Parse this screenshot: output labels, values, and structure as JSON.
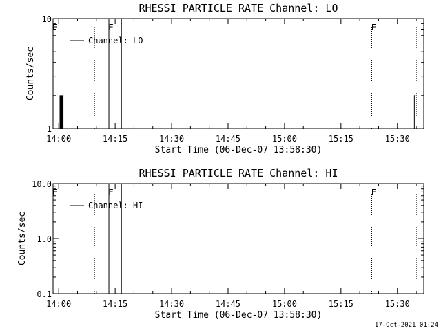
{
  "footer_timestamp": "17-Oct-2021 01:24",
  "chart_data": [
    {
      "type": "line",
      "title": "RHESSI PARTICLE_RATE Channel: LO",
      "xlabel": "Start Time (06-Dec-07 13:58:30)",
      "ylabel": "Counts/sec",
      "yscale": "log",
      "ylim": [
        1,
        10
      ],
      "ytick_labels": [
        "1",
        "10"
      ],
      "xlim": [
        "13:58:30",
        "15:37:00"
      ],
      "xtick_labels": [
        "14:00",
        "14:15",
        "14:30",
        "14:45",
        "15:00",
        "15:15",
        "15:30"
      ],
      "legend": "Channel: LO",
      "series": [
        {
          "name": "Channel: LO",
          "x": [
            "13:58:30",
            "14:00:10",
            "14:00:20",
            "14:00:30",
            "14:00:40",
            "14:00:50",
            "14:01:00",
            "14:01:10",
            "14:01:20",
            "15:34:20",
            "15:34:30",
            "15:34:40"
          ],
          "y": [
            1,
            1,
            2,
            1,
            2,
            1,
            2,
            1,
            1,
            1,
            2,
            2
          ]
        }
      ],
      "markers": [
        {
          "label": "E",
          "time": "13:58:30",
          "style": "dotted"
        },
        {
          "label": "",
          "time": "14:09:30",
          "style": "dotted"
        },
        {
          "label": "F",
          "time": "14:13:20",
          "style": "solid"
        },
        {
          "label": "",
          "time": "14:16:40",
          "style": "solid"
        },
        {
          "label": "E",
          "time": "15:23:10",
          "style": "dotted"
        },
        {
          "label": "",
          "time": "15:35:00",
          "style": "dotted"
        }
      ]
    },
    {
      "type": "line",
      "title": "RHESSI PARTICLE_RATE Channel: HI",
      "xlabel": "Start Time (06-Dec-07 13:58:30)",
      "ylabel": "Counts/sec",
      "yscale": "log",
      "ylim": [
        0.1,
        10
      ],
      "ytick_labels": [
        "0.1",
        "1.0",
        "10.0"
      ],
      "xlim": [
        "13:58:30",
        "15:37:00"
      ],
      "xtick_labels": [
        "14:00",
        "14:15",
        "14:30",
        "14:45",
        "15:00",
        "15:15",
        "15:30"
      ],
      "legend": "Channel: HI",
      "series": [
        {
          "name": "Channel: HI",
          "x": [],
          "y": []
        }
      ],
      "markers": [
        {
          "label": "E",
          "time": "13:58:30",
          "style": "dotted"
        },
        {
          "label": "",
          "time": "14:09:30",
          "style": "dotted"
        },
        {
          "label": "F",
          "time": "14:13:20",
          "style": "solid"
        },
        {
          "label": "",
          "time": "14:16:40",
          "style": "solid"
        },
        {
          "label": "E",
          "time": "15:23:10",
          "style": "dotted"
        },
        {
          "label": "",
          "time": "15:35:00",
          "style": "dotted"
        }
      ]
    }
  ]
}
